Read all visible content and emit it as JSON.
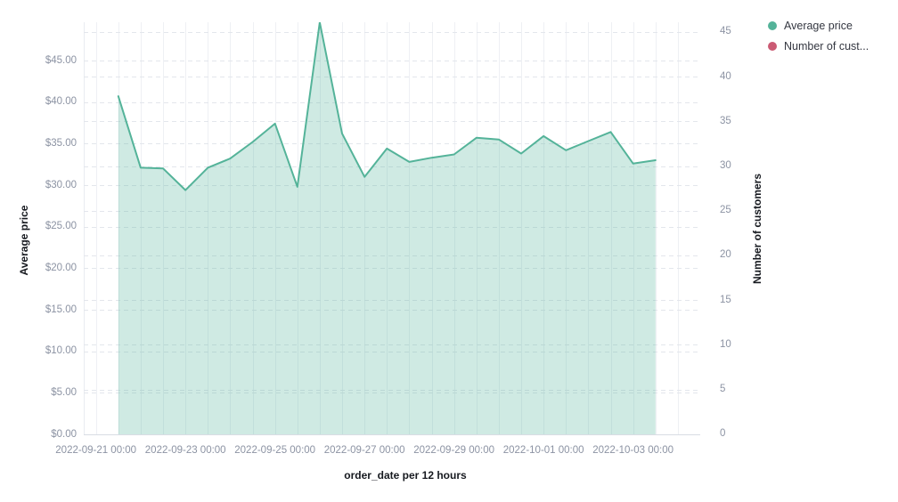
{
  "legend": {
    "items": [
      {
        "label": "Average price",
        "color": "#54b399"
      },
      {
        "label": "Number of cust...",
        "color": "#cb5b74"
      }
    ]
  },
  "colors": {
    "background": "#ffffff",
    "series_green": "#54b399",
    "series_green_fill_opacity": 0.28,
    "series_pink": "#cb5b74",
    "grid_vertical": "#eef0f4",
    "grid_dashed": "#e3e6ec",
    "axis_line": "#d9dde4",
    "tick_text": "#8c93a3",
    "title_text": "#16191f",
    "legend_text": "#343741"
  },
  "chart_data": {
    "type": "area",
    "title": "",
    "xlabel": "order_date per 12 hours",
    "x_bucket": "12 hours",
    "grid": true,
    "legend_position": "top-right",
    "left_axis": {
      "title": "Average price",
      "domain": [
        0,
        49.6
      ],
      "tick_values": [
        0,
        5,
        10,
        15,
        20,
        25,
        30,
        35,
        40,
        45
      ],
      "tick_labels": [
        "$0.00",
        "$5.00",
        "$10.00",
        "$15.00",
        "$20.00",
        "$25.00",
        "$30.00",
        "$35.00",
        "$40.00",
        "$45.00"
      ]
    },
    "right_axis": {
      "title": "Number of customers",
      "domain": [
        0,
        46.2
      ],
      "tick_values": [
        0,
        5,
        10,
        15,
        20,
        25,
        30,
        35,
        40,
        45
      ],
      "tick_labels": [
        "0",
        "5",
        "10",
        "15",
        "20",
        "25",
        "30",
        "35",
        "40",
        "45"
      ]
    },
    "x_tick_labels": [
      "2022-09-21 00:00",
      "2022-09-23 00:00",
      "2022-09-25 00:00",
      "2022-09-27 00:00",
      "2022-09-29 00:00",
      "2022-10-01 00:00",
      "2022-10-03 00:00"
    ],
    "x": [
      "2022-09-21 12:00",
      "2022-09-22 00:00",
      "2022-09-22 12:00",
      "2022-09-23 00:00",
      "2022-09-23 12:00",
      "2022-09-24 00:00",
      "2022-09-24 12:00",
      "2022-09-25 00:00",
      "2022-09-25 12:00",
      "2022-09-26 00:00",
      "2022-09-26 12:00",
      "2022-09-27 00:00",
      "2022-09-27 12:00",
      "2022-09-28 00:00",
      "2022-09-28 12:00",
      "2022-09-29 00:00",
      "2022-09-29 12:00",
      "2022-09-30 00:00",
      "2022-09-30 12:00",
      "2022-10-01 00:00",
      "2022-10-01 12:00",
      "2022-10-02 00:00",
      "2022-10-02 12:00",
      "2022-10-03 00:00",
      "2022-10-03 12:00"
    ],
    "series": [
      {
        "name": "Average price",
        "axis": "left",
        "color": "#54b399",
        "values": [
          40.7,
          32.1,
          32.0,
          29.4,
          32.1,
          33.2,
          35.2,
          37.4,
          29.8,
          49.6,
          36.2,
          31.0,
          34.4,
          32.8,
          33.3,
          33.7,
          35.7,
          35.5,
          33.8,
          35.9,
          34.2,
          35.3,
          36.4,
          32.6,
          33.0
        ]
      },
      {
        "name": "Number of customers",
        "axis": "right",
        "color": "#cb5b74",
        "values": []
      }
    ]
  }
}
